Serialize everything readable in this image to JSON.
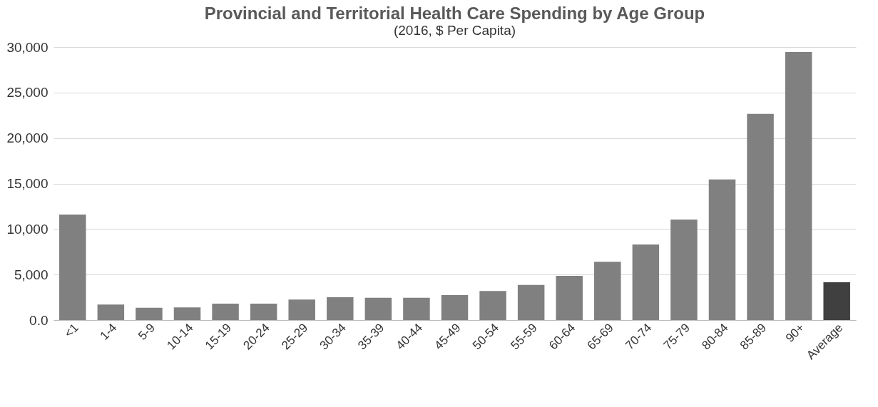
{
  "chart_data": {
    "type": "bar",
    "title": "Provincial and Territorial Health Care Spending by Age Group",
    "subtitle": "(2016, $ Per Capita)",
    "categories": [
      "<1",
      "1-4",
      "5-9",
      "10-14",
      "15-19",
      "20-24",
      "25-29",
      "30-34",
      "35-39",
      "40-44",
      "45-49",
      "50-54",
      "55-59",
      "60-64",
      "65-69",
      "70-74",
      "75-79",
      "80-84",
      "85-89",
      "90+",
      "Average"
    ],
    "values": [
      11600,
      1700,
      1350,
      1400,
      1800,
      1800,
      2250,
      2500,
      2450,
      2450,
      2750,
      3200,
      3850,
      4850,
      6400,
      8300,
      11050,
      15450,
      22650,
      29450,
      4150
    ],
    "colors": [
      "#808080",
      "#808080",
      "#808080",
      "#808080",
      "#808080",
      "#808080",
      "#808080",
      "#808080",
      "#808080",
      "#808080",
      "#808080",
      "#808080",
      "#808080",
      "#808080",
      "#808080",
      "#808080",
      "#808080",
      "#808080",
      "#808080",
      "#808080",
      "#404040"
    ],
    "ylim": [
      0,
      30000
    ],
    "yticks": [
      {
        "value": 0,
        "label": "0.0"
      },
      {
        "value": 5000,
        "label": "5,000"
      },
      {
        "value": 10000,
        "label": "10,000"
      },
      {
        "value": 15000,
        "label": "15,000"
      },
      {
        "value": 20000,
        "label": "20,000"
      },
      {
        "value": 25000,
        "label": "25,000"
      },
      {
        "value": 30000,
        "label": "30,000"
      }
    ],
    "grid": "y"
  }
}
